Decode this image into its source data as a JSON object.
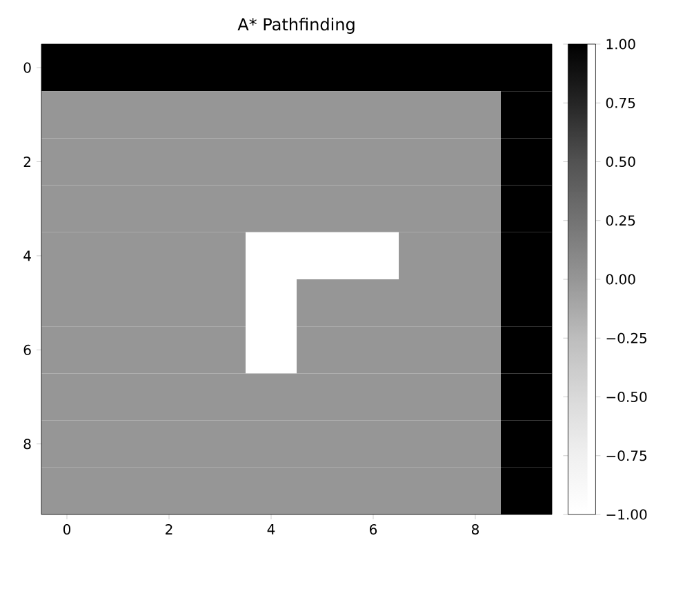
{
  "chart_data": {
    "type": "heatmap",
    "title": "A* Pathfinding",
    "categories": [
      "0",
      null,
      "2",
      null,
      "4",
      null,
      "6",
      null,
      "8",
      null
    ],
    "y_categories": [
      "0",
      null,
      "2",
      null,
      "4",
      null,
      "6",
      null,
      "8",
      null
    ],
    "cells": [
      [
        1,
        1,
        1,
        1,
        1,
        1,
        1,
        1,
        1,
        1
      ],
      [
        0,
        0,
        0,
        0,
        0,
        0,
        0,
        0,
        0,
        1
      ],
      [
        0,
        0,
        0,
        0,
        0,
        0,
        0,
        0,
        0,
        1
      ],
      [
        0,
        0,
        0,
        0,
        0,
        0,
        0,
        0,
        0,
        1
      ],
      [
        0,
        0,
        0,
        0,
        -1,
        -1,
        -1,
        0,
        0,
        1
      ],
      [
        0,
        0,
        0,
        0,
        -1,
        0,
        0,
        0,
        0,
        1
      ],
      [
        0,
        0,
        0,
        0,
        -1,
        0,
        0,
        0,
        0,
        1
      ],
      [
        0,
        0,
        0,
        0,
        0,
        0,
        0,
        0,
        0,
        1
      ],
      [
        0,
        0,
        0,
        0,
        0,
        0,
        0,
        0,
        0,
        1
      ],
      [
        0,
        0,
        0,
        0,
        0,
        0,
        0,
        0,
        0,
        1
      ]
    ],
    "clim": [
      -1,
      1
    ],
    "cticks": [
      {
        "value": -1,
        "label": "−1.00"
      },
      {
        "value": -0.75,
        "label": "−0.75"
      },
      {
        "value": -0.5,
        "label": "−0.50"
      },
      {
        "value": -0.25,
        "label": "−0.25"
      },
      {
        "value": 0,
        "label": "0.00"
      },
      {
        "value": 0.25,
        "label": "0.25"
      },
      {
        "value": 0.5,
        "label": "0.50"
      },
      {
        "value": 0.75,
        "label": "0.75"
      },
      {
        "value": 1,
        "label": "1.00"
      }
    ]
  }
}
